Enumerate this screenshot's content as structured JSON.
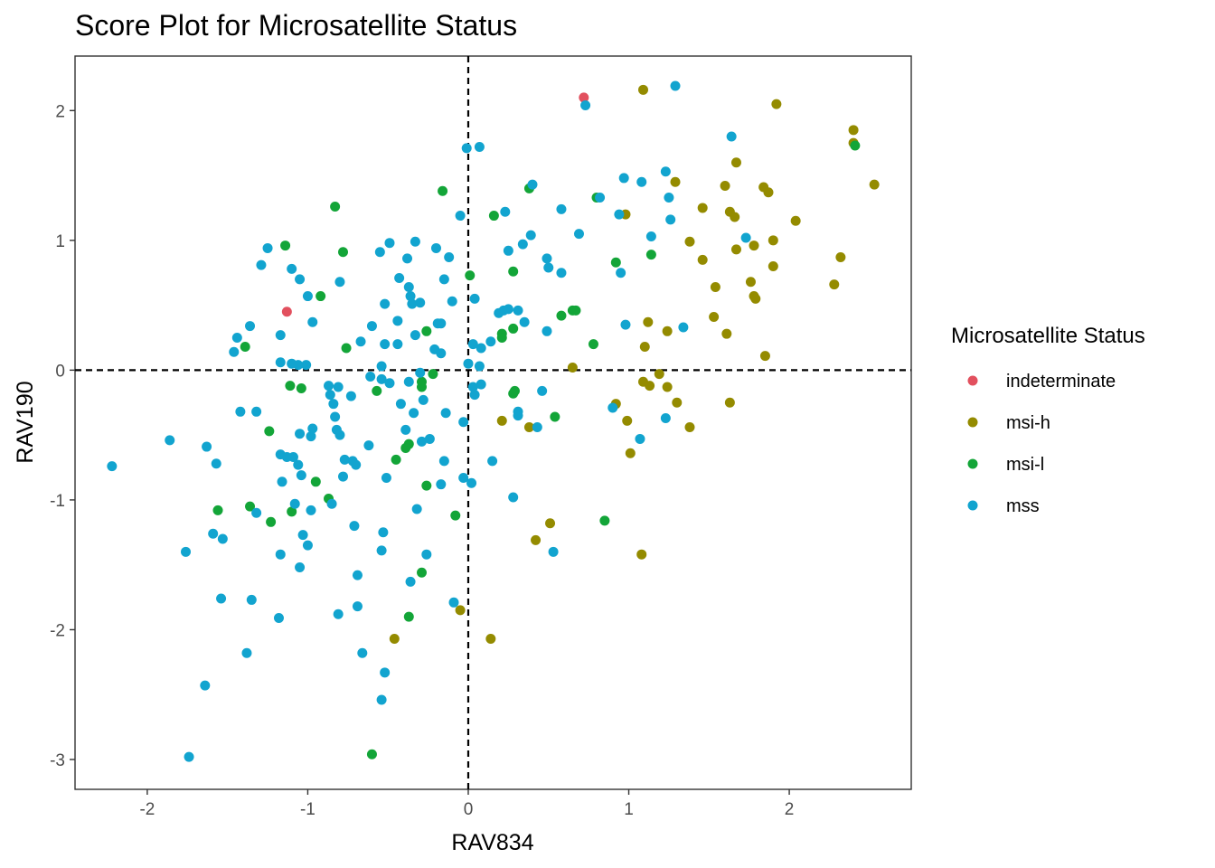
{
  "chart_data": {
    "type": "scatter",
    "title": "Score Plot for Microsatellite Status",
    "xlabel": "RAV834",
    "ylabel": "RAV190",
    "xlim": [
      -2.45,
      2.76
    ],
    "ylim": [
      -3.23,
      2.42
    ],
    "x_ticks": [
      -2,
      -1,
      0,
      1,
      2
    ],
    "y_ticks": [
      -3,
      -2,
      -1,
      0,
      1,
      2
    ],
    "reference_lines": {
      "x": 0,
      "y": 0,
      "style": "dashed"
    },
    "grid": false,
    "legend": {
      "title": "Microsatellite Status",
      "placement": "right"
    },
    "series": [
      {
        "name": "indeterminate",
        "color": "#E2505E",
        "points": [
          [
            0.72,
            2.1
          ],
          [
            -1.13,
            0.45
          ]
        ]
      },
      {
        "name": "msi-h",
        "color": "#948B00",
        "points": [
          [
            1.09,
            2.16
          ],
          [
            1.92,
            2.05
          ],
          [
            2.4,
            1.85
          ],
          [
            2.4,
            1.75
          ],
          [
            1.67,
            1.6
          ],
          [
            1.29,
            1.45
          ],
          [
            2.53,
            1.43
          ],
          [
            1.6,
            1.42
          ],
          [
            1.84,
            1.41
          ],
          [
            1.87,
            1.37
          ],
          [
            1.46,
            1.25
          ],
          [
            1.63,
            1.22
          ],
          [
            0.98,
            1.2
          ],
          [
            1.66,
            1.18
          ],
          [
            2.04,
            1.15
          ],
          [
            1.9,
            1.0
          ],
          [
            1.38,
            0.99
          ],
          [
            1.78,
            0.96
          ],
          [
            1.67,
            0.93
          ],
          [
            2.32,
            0.87
          ],
          [
            1.46,
            0.85
          ],
          [
            1.9,
            0.8
          ],
          [
            1.76,
            0.68
          ],
          [
            2.28,
            0.66
          ],
          [
            1.54,
            0.64
          ],
          [
            1.78,
            0.57
          ],
          [
            1.79,
            0.55
          ],
          [
            1.12,
            0.37
          ],
          [
            1.53,
            0.41
          ],
          [
            1.24,
            0.3
          ],
          [
            1.61,
            0.28
          ],
          [
            1.1,
            0.18
          ],
          [
            1.85,
            0.11
          ],
          [
            0.65,
            0.02
          ],
          [
            1.19,
            -0.03
          ],
          [
            1.09,
            -0.09
          ],
          [
            1.13,
            -0.12
          ],
          [
            1.24,
            -0.13
          ],
          [
            0.92,
            -0.26
          ],
          [
            1.3,
            -0.25
          ],
          [
            1.63,
            -0.25
          ],
          [
            0.21,
            -0.39
          ],
          [
            0.99,
            -0.39
          ],
          [
            1.38,
            -0.44
          ],
          [
            0.38,
            -0.44
          ],
          [
            1.01,
            -0.64
          ],
          [
            0.51,
            -1.18
          ],
          [
            0.42,
            -1.31
          ],
          [
            1.08,
            -1.42
          ],
          [
            -0.05,
            -1.85
          ],
          [
            -0.46,
            -2.07
          ],
          [
            0.14,
            -2.07
          ]
        ]
      },
      {
        "name": "msi-l",
        "color": "#13A538",
        "points": [
          [
            2.41,
            1.73
          ],
          [
            0.38,
            1.4
          ],
          [
            -0.16,
            1.38
          ],
          [
            0.8,
            1.33
          ],
          [
            -0.83,
            1.26
          ],
          [
            0.16,
            1.19
          ],
          [
            -1.14,
            0.96
          ],
          [
            -0.78,
            0.91
          ],
          [
            1.14,
            0.89
          ],
          [
            0.92,
            0.83
          ],
          [
            0.28,
            0.76
          ],
          [
            0.01,
            0.73
          ],
          [
            -0.92,
            0.57
          ],
          [
            0.65,
            0.46
          ],
          [
            0.67,
            0.46
          ],
          [
            0.58,
            0.42
          ],
          [
            0.28,
            0.32
          ],
          [
            0.21,
            0.28
          ],
          [
            -0.26,
            0.3
          ],
          [
            0.21,
            0.25
          ],
          [
            0.78,
            0.2
          ],
          [
            -1.39,
            0.18
          ],
          [
            -0.76,
            0.17
          ],
          [
            -0.22,
            -0.03
          ],
          [
            -0.29,
            -0.09
          ],
          [
            -1.11,
            -0.12
          ],
          [
            -1.04,
            -0.14
          ],
          [
            -0.57,
            -0.16
          ],
          [
            0.29,
            -0.16
          ],
          [
            0.28,
            -0.18
          ],
          [
            -0.29,
            -0.13
          ],
          [
            0.54,
            -0.36
          ],
          [
            -1.24,
            -0.47
          ],
          [
            -0.37,
            -0.57
          ],
          [
            -0.39,
            -0.6
          ],
          [
            -0.45,
            -0.69
          ],
          [
            -0.26,
            -0.89
          ],
          [
            -0.95,
            -0.86
          ],
          [
            -0.87,
            -0.99
          ],
          [
            -1.36,
            -1.05
          ],
          [
            -1.56,
            -1.08
          ],
          [
            -1.1,
            -1.09
          ],
          [
            -0.08,
            -1.12
          ],
          [
            0.85,
            -1.16
          ],
          [
            -1.23,
            -1.17
          ],
          [
            -0.29,
            -1.56
          ],
          [
            -0.37,
            -1.9
          ],
          [
            -0.6,
            -2.96
          ]
        ]
      },
      {
        "name": "mss",
        "color": "#12A4CF",
        "points": [
          [
            1.29,
            2.19
          ],
          [
            0.73,
            2.04
          ],
          [
            1.64,
            1.8
          ],
          [
            -0.01,
            1.71
          ],
          [
            0.07,
            1.72
          ],
          [
            1.23,
            1.53
          ],
          [
            0.97,
            1.48
          ],
          [
            1.08,
            1.45
          ],
          [
            0.4,
            1.43
          ],
          [
            1.25,
            1.33
          ],
          [
            0.82,
            1.33
          ],
          [
            0.58,
            1.24
          ],
          [
            0.23,
            1.22
          ],
          [
            0.94,
            1.2
          ],
          [
            -0.05,
            1.19
          ],
          [
            1.26,
            1.16
          ],
          [
            0.69,
            1.05
          ],
          [
            1.14,
            1.03
          ],
          [
            1.73,
            1.02
          ],
          [
            0.39,
            1.04
          ],
          [
            -0.49,
            0.98
          ],
          [
            -0.33,
            0.99
          ],
          [
            -0.2,
            0.94
          ],
          [
            -1.25,
            0.94
          ],
          [
            0.34,
            0.97
          ],
          [
            -0.55,
            0.91
          ],
          [
            0.25,
            0.92
          ],
          [
            -0.38,
            0.86
          ],
          [
            0.49,
            0.86
          ],
          [
            -0.12,
            0.87
          ],
          [
            -1.29,
            0.81
          ],
          [
            -1.1,
            0.78
          ],
          [
            0.5,
            0.79
          ],
          [
            0.58,
            0.75
          ],
          [
            0.95,
            0.75
          ],
          [
            -0.43,
            0.71
          ],
          [
            -1.05,
            0.7
          ],
          [
            -0.15,
            0.7
          ],
          [
            -0.8,
            0.68
          ],
          [
            -0.37,
            0.64
          ],
          [
            -0.36,
            0.57
          ],
          [
            -1.0,
            0.57
          ],
          [
            0.04,
            0.55
          ],
          [
            -0.52,
            0.51
          ],
          [
            -0.3,
            0.52
          ],
          [
            -0.1,
            0.53
          ],
          [
            -0.35,
            0.51
          ],
          [
            0.22,
            0.46
          ],
          [
            0.25,
            0.47
          ],
          [
            0.31,
            0.46
          ],
          [
            0.19,
            0.44
          ],
          [
            -0.6,
            0.34
          ],
          [
            -0.44,
            0.38
          ],
          [
            -0.19,
            0.36
          ],
          [
            -0.17,
            0.36
          ],
          [
            0.35,
            0.37
          ],
          [
            0.98,
            0.35
          ],
          [
            1.34,
            0.33
          ],
          [
            -1.36,
            0.34
          ],
          [
            -0.97,
            0.37
          ],
          [
            -1.17,
            0.27
          ],
          [
            -1.44,
            0.25
          ],
          [
            0.49,
            0.3
          ],
          [
            -0.33,
            0.27
          ],
          [
            -0.67,
            0.22
          ],
          [
            -0.52,
            0.2
          ],
          [
            -0.44,
            0.2
          ],
          [
            0.03,
            0.2
          ],
          [
            0.08,
            0.17
          ],
          [
            0.14,
            0.22
          ],
          [
            -1.46,
            0.14
          ],
          [
            -0.21,
            0.16
          ],
          [
            -0.17,
            0.13
          ],
          [
            -1.17,
            0.06
          ],
          [
            -1.1,
            0.05
          ],
          [
            -1.06,
            0.04
          ],
          [
            -1.01,
            0.04
          ],
          [
            -0.54,
            0.03
          ],
          [
            -0.3,
            -0.02
          ],
          [
            0.0,
            0.05
          ],
          [
            0.07,
            0.03
          ],
          [
            -0.54,
            -0.07
          ],
          [
            -0.49,
            -0.1
          ],
          [
            -0.37,
            -0.09
          ],
          [
            -0.61,
            -0.05
          ],
          [
            -0.87,
            -0.12
          ],
          [
            -0.81,
            -0.13
          ],
          [
            0.03,
            -0.13
          ],
          [
            0.04,
            -0.19
          ],
          [
            0.08,
            -0.11
          ],
          [
            0.46,
            -0.16
          ],
          [
            0.9,
            -0.29
          ],
          [
            1.23,
            -0.37
          ],
          [
            -0.86,
            -0.19
          ],
          [
            -0.73,
            -0.2
          ],
          [
            -0.42,
            -0.26
          ],
          [
            -0.28,
            -0.23
          ],
          [
            -0.84,
            -0.26
          ],
          [
            -0.34,
            -0.33
          ],
          [
            -0.14,
            -0.33
          ],
          [
            0.31,
            -0.32
          ],
          [
            0.31,
            -0.35
          ],
          [
            -1.42,
            -0.32
          ],
          [
            -1.32,
            -0.32
          ],
          [
            -0.83,
            -0.36
          ],
          [
            -0.03,
            -0.4
          ],
          [
            -0.39,
            -0.46
          ],
          [
            0.43,
            -0.44
          ],
          [
            -0.97,
            -0.45
          ],
          [
            -0.82,
            -0.46
          ],
          [
            -1.05,
            -0.49
          ],
          [
            -0.98,
            -0.51
          ],
          [
            -0.8,
            -0.5
          ],
          [
            -0.24,
            -0.53
          ],
          [
            -0.29,
            -0.55
          ],
          [
            -0.62,
            -0.58
          ],
          [
            -1.17,
            -0.65
          ],
          [
            -1.13,
            -0.67
          ],
          [
            -1.09,
            -0.67
          ],
          [
            -1.06,
            -0.73
          ],
          [
            -0.77,
            -0.69
          ],
          [
            -0.72,
            -0.7
          ],
          [
            -0.15,
            -0.7
          ],
          [
            0.15,
            -0.7
          ],
          [
            1.07,
            -0.53
          ],
          [
            -1.86,
            -0.54
          ],
          [
            -1.63,
            -0.59
          ],
          [
            -1.57,
            -0.72
          ],
          [
            -2.22,
            -0.74
          ],
          [
            -1.04,
            -0.81
          ],
          [
            -0.7,
            -0.73
          ],
          [
            -0.51,
            -0.83
          ],
          [
            -0.17,
            -0.88
          ],
          [
            -0.03,
            -0.83
          ],
          [
            0.02,
            -0.87
          ],
          [
            -0.78,
            -0.82
          ],
          [
            -1.16,
            -0.86
          ],
          [
            -1.08,
            -1.03
          ],
          [
            -0.98,
            -1.08
          ],
          [
            -0.85,
            -1.03
          ],
          [
            -0.32,
            -1.07
          ],
          [
            0.28,
            -0.98
          ],
          [
            -1.32,
            -1.1
          ],
          [
            -0.71,
            -1.2
          ],
          [
            -0.53,
            -1.25
          ],
          [
            -1.03,
            -1.27
          ],
          [
            -1.59,
            -1.26
          ],
          [
            -1.53,
            -1.3
          ],
          [
            -1.0,
            -1.35
          ],
          [
            -1.17,
            -1.42
          ],
          [
            -1.76,
            -1.4
          ],
          [
            -0.26,
            -1.42
          ],
          [
            -0.54,
            -1.39
          ],
          [
            0.53,
            -1.4
          ],
          [
            -1.05,
            -1.52
          ],
          [
            -0.69,
            -1.58
          ],
          [
            -0.36,
            -1.63
          ],
          [
            -1.54,
            -1.76
          ],
          [
            -1.35,
            -1.77
          ],
          [
            -0.09,
            -1.79
          ],
          [
            -0.69,
            -1.82
          ],
          [
            -0.81,
            -1.88
          ],
          [
            -1.18,
            -1.91
          ],
          [
            -0.66,
            -2.18
          ],
          [
            -1.38,
            -2.18
          ],
          [
            -0.52,
            -2.33
          ],
          [
            -1.64,
            -2.43
          ],
          [
            -0.54,
            -2.54
          ],
          [
            -1.74,
            -2.98
          ]
        ]
      }
    ]
  }
}
